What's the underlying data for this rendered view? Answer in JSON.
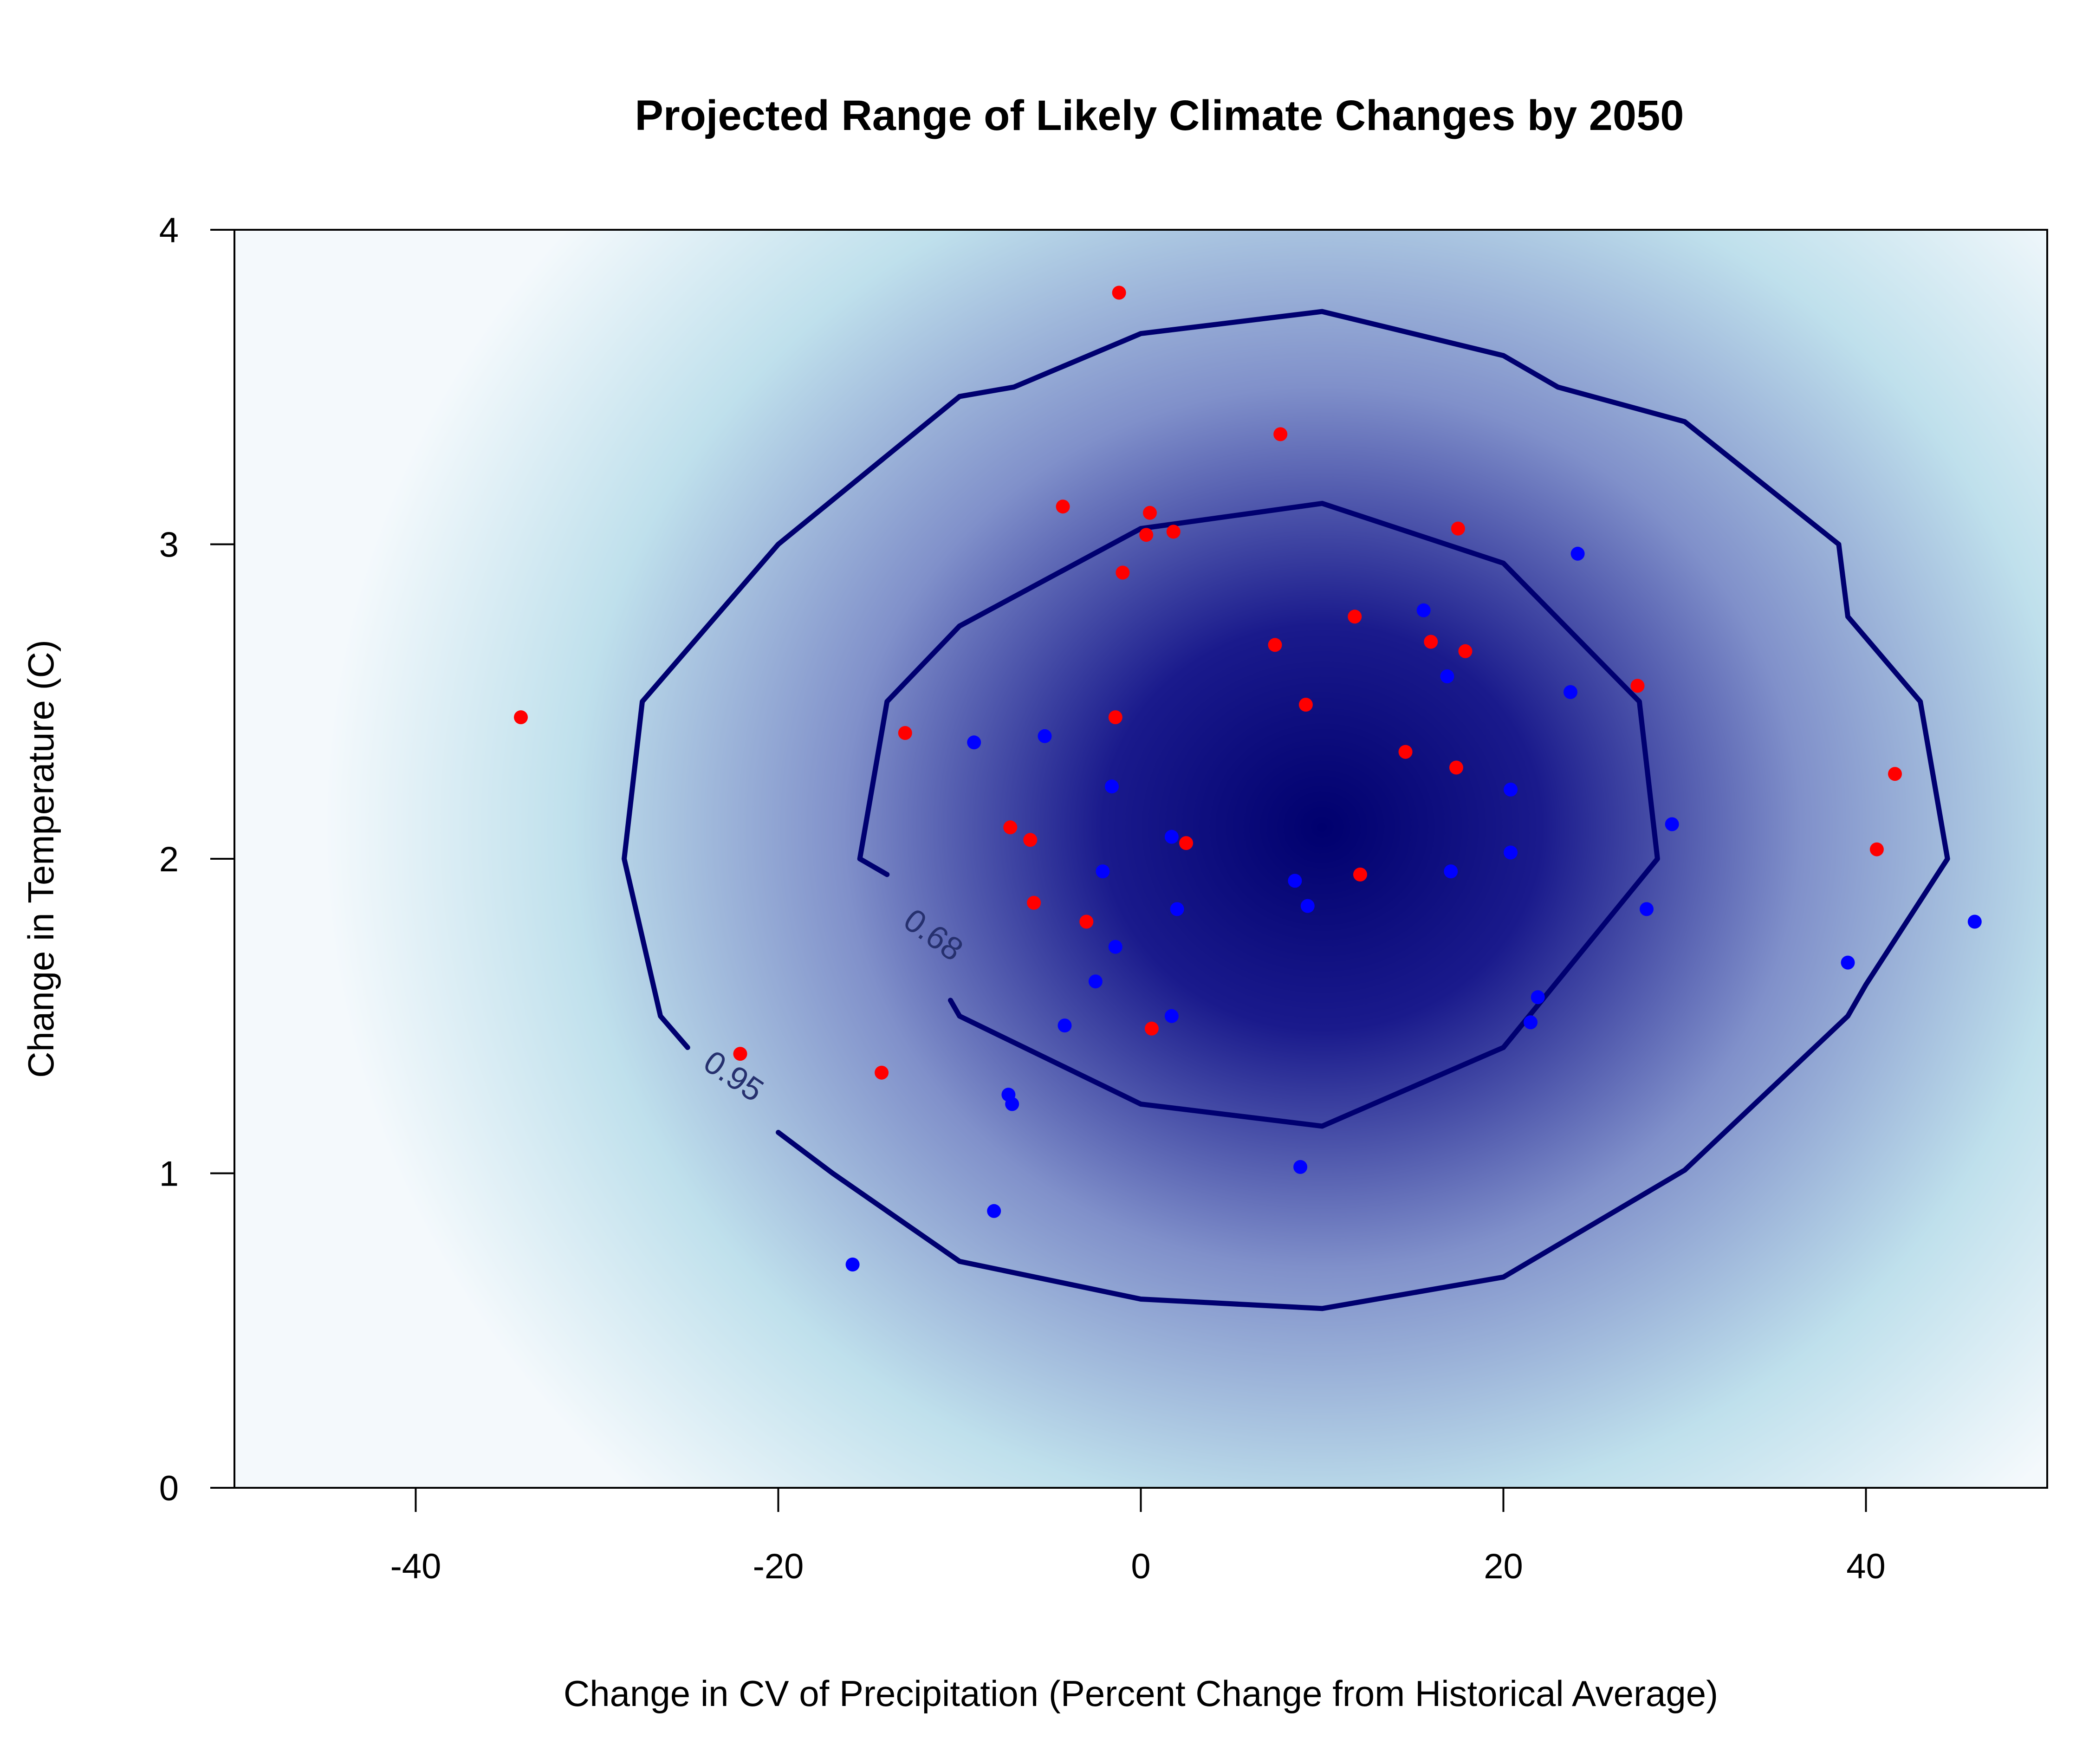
{
  "chart_data": {
    "type": "scatter",
    "title": "Projected Range of Likely Climate Changes by 2050",
    "xlabel": "Change in CV of Precipitation (Percent Change from Historical Average)",
    "ylabel": "Change in Temperature (C)",
    "xlim": [
      -50,
      50
    ],
    "ylim": [
      0,
      4
    ],
    "xticks": [
      -40,
      -20,
      0,
      20,
      40
    ],
    "yticks": [
      0,
      1,
      2,
      3,
      4
    ],
    "xtick_labels": [
      "-40",
      "-20",
      "0",
      "20",
      "40"
    ],
    "ytick_labels": [
      "0",
      "1",
      "2",
      "3",
      "4"
    ],
    "grid": false,
    "legend": "none",
    "density": {
      "center": [
        10,
        2.1
      ],
      "colors": [
        "#f4f9fc",
        "#bfe0ec",
        "#8090ca",
        "#1a1a8c",
        "#00006e"
      ]
    },
    "contours": [
      {
        "label": "0.95",
        "color": "#000070",
        "points": [
          [
            -25,
            1.4
          ],
          [
            -26.5,
            1.5
          ],
          [
            -28.5,
            2.0
          ],
          [
            -27.5,
            2.5
          ],
          [
            -20,
            3.0
          ],
          [
            -10,
            3.47
          ],
          [
            -7,
            3.5
          ],
          [
            0,
            3.67
          ],
          [
            10,
            3.74
          ],
          [
            20,
            3.6
          ],
          [
            23,
            3.5
          ],
          [
            30,
            3.39
          ],
          [
            38.5,
            3.0
          ],
          [
            39,
            2.77
          ],
          [
            43,
            2.5
          ],
          [
            44.5,
            2.0
          ],
          [
            40,
            1.6
          ],
          [
            39,
            1.5
          ],
          [
            30,
            1.01
          ],
          [
            20,
            0.67
          ],
          [
            10,
            0.57
          ],
          [
            0,
            0.6
          ],
          [
            -10,
            0.72
          ],
          [
            -17,
            1.0
          ],
          [
            -20,
            1.13
          ]
        ]
      },
      {
        "label": "0.68",
        "color": "#000070",
        "points": [
          [
            -14,
            1.95
          ],
          [
            -15.5,
            2.0
          ],
          [
            -14,
            2.5
          ],
          [
            -10,
            2.74
          ],
          [
            0,
            3.05
          ],
          [
            10,
            3.13
          ],
          [
            20,
            2.94
          ],
          [
            27.5,
            2.5
          ],
          [
            28.5,
            2.0
          ],
          [
            20,
            1.4
          ],
          [
            10,
            1.15
          ],
          [
            0,
            1.22
          ],
          [
            -10,
            1.5
          ],
          [
            -10.5,
            1.55
          ]
        ]
      }
    ],
    "contour_label_positions": {
      "0.68": [
        -11.8,
        1.73
      ],
      "0.95": [
        -22.8,
        1.28
      ]
    },
    "series": [
      {
        "color": "#ff0000",
        "x": [
          -1.2,
          7.7,
          -4.3,
          0.5,
          17.5,
          1.8,
          0.3,
          -1,
          11.8,
          16,
          17.9,
          7.4,
          27.4,
          9.1,
          -13,
          -1.4,
          14.6,
          17.4,
          41.6,
          -7.2,
          -6.1,
          2.5,
          40.6,
          12.1,
          -5.9,
          -3,
          0.6,
          -22.1,
          -14.3,
          -34.2
        ],
        "y": [
          3.8,
          3.35,
          3.12,
          3.1,
          3.05,
          3.04,
          3.03,
          2.91,
          2.77,
          2.69,
          2.66,
          2.68,
          2.55,
          2.49,
          2.4,
          2.45,
          2.34,
          2.29,
          2.27,
          2.1,
          2.06,
          2.05,
          2.03,
          1.95,
          1.86,
          1.8,
          1.46,
          1.38,
          1.32,
          2.45
        ]
      },
      {
        "color": "#0000ff",
        "x": [
          24.1,
          15.6,
          16.9,
          23.7,
          -9.2,
          -5.3,
          -1.6,
          20.4,
          29.3,
          1.7,
          20.4,
          8.5,
          17.1,
          -2.1,
          9.2,
          2,
          27.9,
          -1.4,
          46,
          39,
          -2.5,
          21.9,
          1.7,
          -4.2,
          21.5,
          -7.3,
          -7.1,
          8.8,
          -8.1,
          -15.9
        ],
        "y": [
          2.97,
          2.79,
          2.58,
          2.53,
          2.37,
          2.39,
          2.23,
          2.22,
          2.11,
          2.07,
          2.02,
          1.93,
          1.96,
          1.96,
          1.85,
          1.84,
          1.84,
          1.72,
          1.8,
          1.67,
          1.61,
          1.56,
          1.5,
          1.47,
          1.48,
          1.25,
          1.22,
          1.02,
          0.88,
          0.71
        ]
      }
    ]
  }
}
